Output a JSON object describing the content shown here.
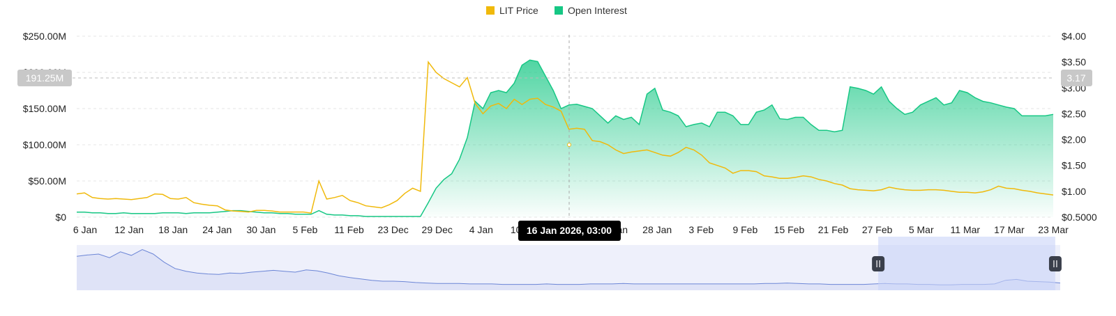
{
  "chart_data": {
    "type": "area",
    "legend": {
      "position": "top-center",
      "items": [
        {
          "label": "LIT Price",
          "color": "#F0B90B"
        },
        {
          "label": "Open Interest",
          "color": "#16C784"
        }
      ]
    },
    "x_ticks": [
      "6 Jan",
      "12 Jan",
      "18 Jan",
      "24 Jan",
      "30 Jan",
      "5 Feb",
      "11 Feb",
      "23 Dec",
      "29 Dec",
      "4 Jan",
      "10 Jan",
      "16 Jan",
      "22 Jan",
      "28 Jan",
      "3 Feb",
      "9 Feb",
      "15 Feb",
      "21 Feb",
      "27 Feb",
      "5 Mar",
      "11 Mar",
      "17 Mar",
      "23 Mar"
    ],
    "y_left": {
      "ticks": [
        "$250.00M",
        "$200.00M",
        "$150.00M",
        "$100.00M",
        "$50.00M",
        "$0"
      ],
      "range": [
        0,
        250
      ]
    },
    "y_right": {
      "ticks": [
        "$4.00",
        "$3.50",
        "$3.00",
        "$2.50",
        "$2.00",
        "$1.50",
        "$1.00",
        "$0.5000"
      ],
      "range": [
        0.5,
        4.0
      ]
    },
    "grid": true,
    "crosshair": {
      "label": "16 Jan 2026, 03:00",
      "left_value": "191.25M",
      "right_value": "3.17"
    },
    "series": [
      {
        "name": "Open Interest",
        "axis": "left",
        "color": "#16C784",
        "points": [
          [
            0,
            7
          ],
          [
            1,
            7
          ],
          [
            2,
            6
          ],
          [
            3,
            6
          ],
          [
            4,
            5
          ],
          [
            5,
            5
          ],
          [
            6,
            6
          ],
          [
            7,
            5
          ],
          [
            8,
            5
          ],
          [
            9,
            5
          ],
          [
            10,
            5
          ],
          [
            11,
            6
          ],
          [
            12,
            6
          ],
          [
            13,
            6
          ],
          [
            14,
            5
          ],
          [
            15,
            6
          ],
          [
            16,
            6
          ],
          [
            17,
            6
          ],
          [
            18,
            7
          ],
          [
            19,
            8
          ],
          [
            20,
            9
          ],
          [
            21,
            9
          ],
          [
            22,
            8
          ],
          [
            23,
            7
          ],
          [
            24,
            6
          ],
          [
            25,
            6
          ],
          [
            26,
            5
          ],
          [
            27,
            5
          ],
          [
            28,
            4
          ],
          [
            29,
            4
          ],
          [
            30,
            4
          ],
          [
            31,
            9
          ],
          [
            32,
            4
          ],
          [
            33,
            3
          ],
          [
            34,
            3
          ],
          [
            35,
            2
          ],
          [
            36,
            2
          ],
          [
            37,
            1
          ],
          [
            38,
            1
          ],
          [
            39,
            1
          ],
          [
            40,
            1
          ],
          [
            41,
            1
          ],
          [
            42,
            1
          ],
          [
            43,
            1
          ],
          [
            44,
            1
          ],
          [
            45,
            20
          ],
          [
            46,
            40
          ],
          [
            47,
            52
          ],
          [
            48,
            60
          ],
          [
            49,
            80
          ],
          [
            50,
            110
          ],
          [
            51,
            160
          ],
          [
            52,
            150
          ],
          [
            53,
            172
          ],
          [
            54,
            175
          ],
          [
            55,
            172
          ],
          [
            56,
            185
          ],
          [
            57,
            210
          ],
          [
            58,
            217
          ],
          [
            59,
            215
          ],
          [
            60,
            195
          ],
          [
            61,
            175
          ],
          [
            62,
            150
          ],
          [
            63,
            155
          ],
          [
            64,
            156
          ],
          [
            65,
            153
          ],
          [
            66,
            150
          ],
          [
            67,
            140
          ],
          [
            68,
            130
          ],
          [
            69,
            140
          ],
          [
            70,
            135
          ],
          [
            71,
            138
          ],
          [
            72,
            128
          ],
          [
            73,
            170
          ],
          [
            74,
            178
          ],
          [
            75,
            148
          ],
          [
            76,
            145
          ],
          [
            77,
            140
          ],
          [
            78,
            125
          ],
          [
            79,
            128
          ],
          [
            80,
            130
          ],
          [
            81,
            125
          ],
          [
            82,
            145
          ],
          [
            83,
            145
          ],
          [
            84,
            140
          ],
          [
            85,
            128
          ],
          [
            86,
            128
          ],
          [
            87,
            145
          ],
          [
            88,
            148
          ],
          [
            89,
            155
          ],
          [
            90,
            136
          ],
          [
            91,
            135
          ],
          [
            92,
            138
          ],
          [
            93,
            138
          ],
          [
            94,
            128
          ],
          [
            95,
            120
          ],
          [
            96,
            120
          ],
          [
            97,
            118
          ],
          [
            98,
            120
          ],
          [
            99,
            180
          ],
          [
            100,
            178
          ],
          [
            101,
            175
          ],
          [
            102,
            170
          ],
          [
            103,
            180
          ],
          [
            104,
            160
          ],
          [
            105,
            150
          ],
          [
            106,
            142
          ],
          [
            107,
            145
          ],
          [
            108,
            155
          ],
          [
            109,
            160
          ],
          [
            110,
            165
          ],
          [
            111,
            155
          ],
          [
            112,
            158
          ],
          [
            113,
            175
          ],
          [
            114,
            172
          ],
          [
            115,
            165
          ],
          [
            116,
            160
          ],
          [
            117,
            158
          ],
          [
            118,
            155
          ],
          [
            119,
            152
          ],
          [
            120,
            150
          ],
          [
            121,
            140
          ],
          [
            122,
            140
          ],
          [
            123,
            140
          ],
          [
            124,
            140
          ],
          [
            125,
            142
          ]
        ]
      },
      {
        "name": "LIT Price",
        "axis": "right",
        "color": "#F0B90B",
        "points": [
          [
            0,
            0.95
          ],
          [
            1,
            0.97
          ],
          [
            2,
            0.88
          ],
          [
            3,
            0.86
          ],
          [
            4,
            0.85
          ],
          [
            5,
            0.86
          ],
          [
            6,
            0.85
          ],
          [
            7,
            0.84
          ],
          [
            8,
            0.86
          ],
          [
            9,
            0.88
          ],
          [
            10,
            0.95
          ],
          [
            11,
            0.94
          ],
          [
            12,
            0.86
          ],
          [
            13,
            0.85
          ],
          [
            14,
            0.88
          ],
          [
            15,
            0.78
          ],
          [
            16,
            0.75
          ],
          [
            17,
            0.73
          ],
          [
            18,
            0.72
          ],
          [
            19,
            0.64
          ],
          [
            20,
            0.62
          ],
          [
            21,
            0.61
          ],
          [
            22,
            0.6
          ],
          [
            23,
            0.63
          ],
          [
            24,
            0.63
          ],
          [
            25,
            0.62
          ],
          [
            26,
            0.6
          ],
          [
            27,
            0.6
          ],
          [
            28,
            0.6
          ],
          [
            29,
            0.6
          ],
          [
            30,
            0.58
          ],
          [
            31,
            1.2
          ],
          [
            32,
            0.85
          ],
          [
            33,
            0.88
          ],
          [
            34,
            0.92
          ],
          [
            35,
            0.82
          ],
          [
            36,
            0.78
          ],
          [
            37,
            0.72
          ],
          [
            38,
            0.7
          ],
          [
            39,
            0.68
          ],
          [
            40,
            0.74
          ],
          [
            41,
            0.82
          ],
          [
            42,
            0.96
          ],
          [
            43,
            1.06
          ],
          [
            44,
            1.0
          ],
          [
            45,
            3.5
          ],
          [
            46,
            3.3
          ],
          [
            47,
            3.18
          ],
          [
            48,
            3.1
          ],
          [
            49,
            3.02
          ],
          [
            50,
            3.2
          ],
          [
            51,
            2.7
          ],
          [
            52,
            2.5
          ],
          [
            53,
            2.65
          ],
          [
            54,
            2.7
          ],
          [
            55,
            2.6
          ],
          [
            56,
            2.78
          ],
          [
            57,
            2.68
          ],
          [
            58,
            2.78
          ],
          [
            59,
            2.8
          ],
          [
            60,
            2.68
          ],
          [
            61,
            2.63
          ],
          [
            62,
            2.55
          ],
          [
            63,
            2.2
          ],
          [
            64,
            2.22
          ],
          [
            65,
            2.2
          ],
          [
            66,
            1.98
          ],
          [
            67,
            1.96
          ],
          [
            68,
            1.9
          ],
          [
            69,
            1.8
          ],
          [
            70,
            1.73
          ],
          [
            71,
            1.76
          ],
          [
            72,
            1.78
          ],
          [
            73,
            1.8
          ],
          [
            74,
            1.75
          ],
          [
            75,
            1.7
          ],
          [
            76,
            1.68
          ],
          [
            77,
            1.75
          ],
          [
            78,
            1.85
          ],
          [
            79,
            1.8
          ],
          [
            80,
            1.7
          ],
          [
            81,
            1.55
          ],
          [
            82,
            1.5
          ],
          [
            83,
            1.45
          ],
          [
            84,
            1.35
          ],
          [
            85,
            1.4
          ],
          [
            86,
            1.4
          ],
          [
            87,
            1.38
          ],
          [
            88,
            1.3
          ],
          [
            89,
            1.28
          ],
          [
            90,
            1.25
          ],
          [
            91,
            1.25
          ],
          [
            92,
            1.27
          ],
          [
            93,
            1.3
          ],
          [
            94,
            1.28
          ],
          [
            95,
            1.23
          ],
          [
            96,
            1.2
          ],
          [
            97,
            1.15
          ],
          [
            98,
            1.12
          ],
          [
            99,
            1.05
          ],
          [
            100,
            1.03
          ],
          [
            101,
            1.02
          ],
          [
            102,
            1.01
          ],
          [
            103,
            1.03
          ],
          [
            104,
            1.08
          ],
          [
            105,
            1.05
          ],
          [
            106,
            1.03
          ],
          [
            107,
            1.02
          ],
          [
            108,
            1.02
          ],
          [
            109,
            1.03
          ],
          [
            110,
            1.03
          ],
          [
            111,
            1.02
          ],
          [
            112,
            1.0
          ],
          [
            113,
            0.98
          ],
          [
            114,
            0.98
          ],
          [
            115,
            0.97
          ],
          [
            116,
            0.99
          ],
          [
            117,
            1.03
          ],
          [
            118,
            1.1
          ],
          [
            119,
            1.06
          ],
          [
            120,
            1.05
          ],
          [
            121,
            1.02
          ],
          [
            122,
            1.0
          ],
          [
            123,
            0.97
          ],
          [
            124,
            0.95
          ],
          [
            125,
            0.93
          ]
        ]
      }
    ],
    "navigator": {
      "points": [
        0.75,
        0.78,
        0.8,
        0.72,
        0.85,
        0.77,
        0.9,
        0.8,
        0.62,
        0.48,
        0.42,
        0.38,
        0.36,
        0.35,
        0.38,
        0.37,
        0.4,
        0.42,
        0.44,
        0.42,
        0.4,
        0.45,
        0.43,
        0.38,
        0.32,
        0.28,
        0.25,
        0.22,
        0.2,
        0.2,
        0.19,
        0.17,
        0.16,
        0.15,
        0.15,
        0.15,
        0.14,
        0.14,
        0.14,
        0.13,
        0.13,
        0.13,
        0.13,
        0.14,
        0.13,
        0.13,
        0.13,
        0.14,
        0.14,
        0.14,
        0.15,
        0.14,
        0.14,
        0.14,
        0.14,
        0.14,
        0.14,
        0.14,
        0.14,
        0.14,
        0.14,
        0.14,
        0.14,
        0.15,
        0.15,
        0.16,
        0.15,
        0.14,
        0.14,
        0.13,
        0.13,
        0.13,
        0.13,
        0.14,
        0.15,
        0.14,
        0.14,
        0.13,
        0.13,
        0.12,
        0.12,
        0.13,
        0.13,
        0.13,
        0.14,
        0.22,
        0.24,
        0.2,
        0.19,
        0.18,
        0.16
      ],
      "selection": [
        0.815,
        0.995
      ]
    }
  }
}
